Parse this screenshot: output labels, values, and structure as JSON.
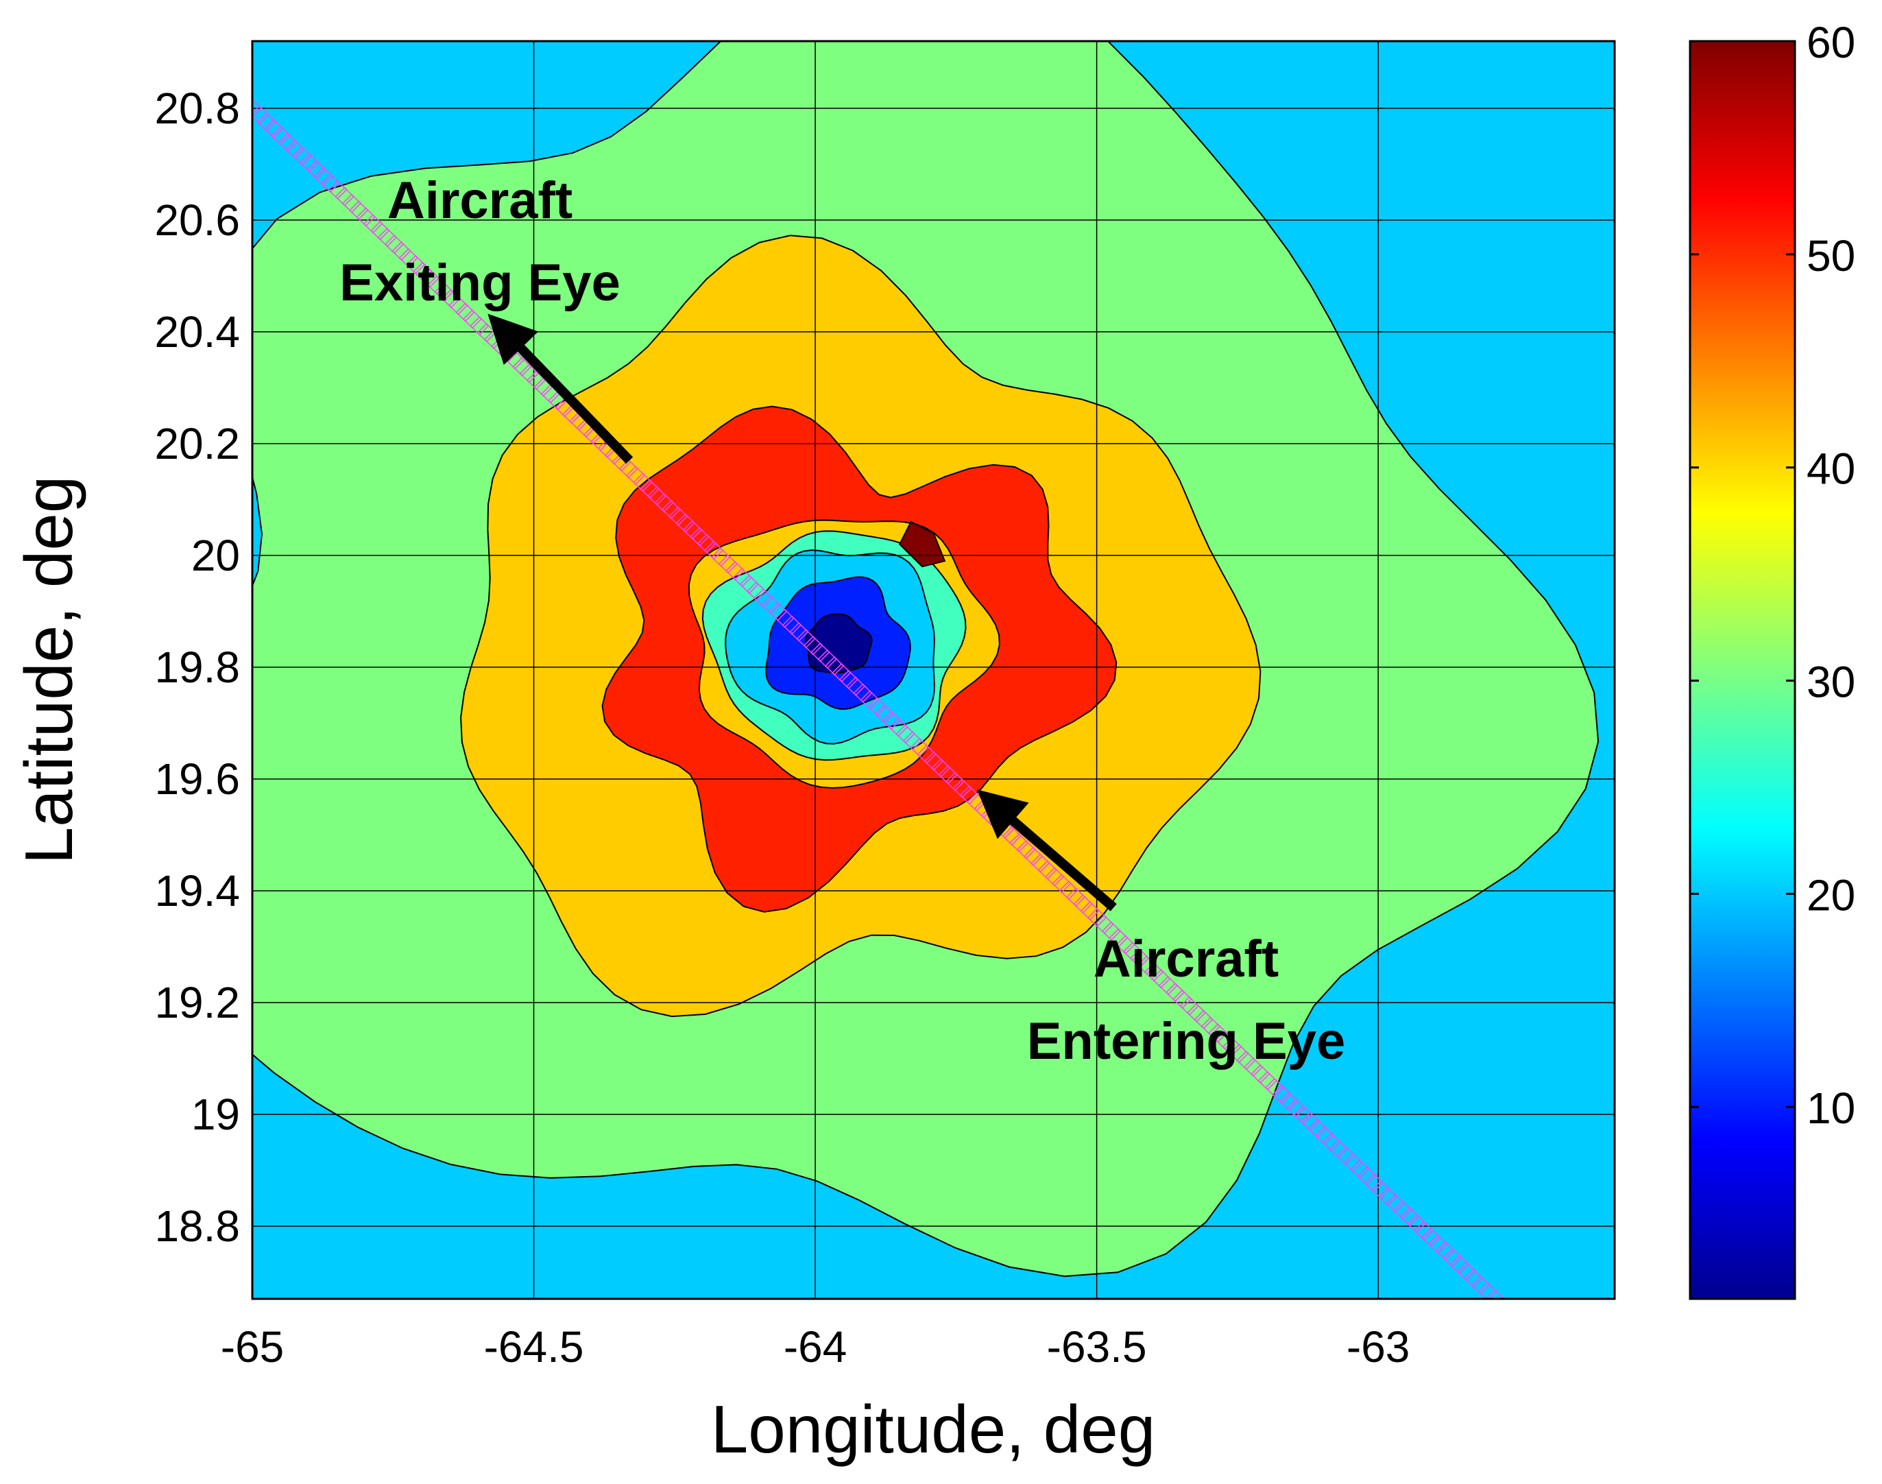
{
  "chart_data": {
    "type": "heatmap",
    "xlabel": "Longitude, deg",
    "ylabel": "Latitude, deg",
    "xlim": [
      -65,
      -62.58
    ],
    "ylim": [
      18.67,
      20.92
    ],
    "xticks": [
      "-65",
      "-64.5",
      "-64",
      "-63.5",
      "-63"
    ],
    "xtick_values": [
      -65,
      -64.5,
      -64,
      -63.5,
      -63
    ],
    "yticks": [
      "20.8",
      "20.6",
      "20.4",
      "20.2",
      "20",
      "19.8",
      "19.6",
      "19.4",
      "19.2",
      "19",
      "18.8"
    ],
    "ytick_values": [
      20.8,
      20.6,
      20.4,
      20.2,
      20.0,
      19.8,
      19.6,
      19.4,
      19.2,
      19.0,
      18.8
    ],
    "grid": true,
    "colorbar": {
      "range": [
        1,
        60
      ],
      "ticks": [
        "10",
        "20",
        "30",
        "40",
        "50",
        "60"
      ],
      "tick_values": [
        10,
        20,
        30,
        40,
        50,
        60
      ],
      "colormap": "jet"
    },
    "field": {
      "center": [
        -63.96,
        19.84
      ],
      "background_value": 20,
      "contour_bands": [
        {
          "min": 1,
          "max": 10,
          "color": "#00008f"
        },
        {
          "min": 10,
          "max": 16,
          "color": "#0020ff"
        },
        {
          "min": 16,
          "max": 22,
          "color": "#00ccff"
        },
        {
          "min": 22,
          "max": 28,
          "color": "#40ffbf"
        },
        {
          "min": 28,
          "max": 34,
          "color": "#7fff7f"
        },
        {
          "min": 34,
          "max": 42,
          "color": "#ffcc00"
        },
        {
          "min": 42,
          "max": 54,
          "color": "#ff2000"
        },
        {
          "min": 54,
          "max": 60,
          "color": "#800000"
        }
      ]
    },
    "flight_track": {
      "color": "#ff40ff",
      "start": [
        -65.0,
        20.8
      ],
      "end": [
        -62.73,
        18.61
      ]
    },
    "annotations": [
      {
        "lines": [
          "Aircraft",
          "Exiting Eye"
        ],
        "arrow_from": [
          -64.33,
          20.17
        ],
        "arrow_to": [
          -64.57,
          20.42
        ]
      },
      {
        "lines": [
          "Aircraft",
          "Entering Eye"
        ],
        "arrow_from": [
          -63.47,
          19.37
        ],
        "arrow_to": [
          -63.7,
          19.57
        ]
      }
    ]
  }
}
